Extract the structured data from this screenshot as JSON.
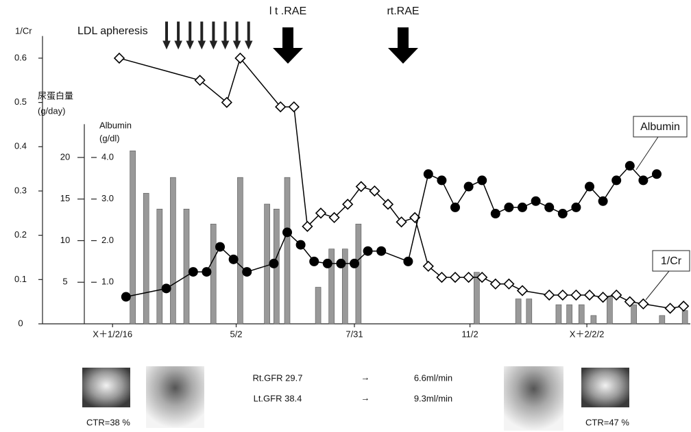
{
  "chart_data": {
    "type": "combo",
    "xlim": [
      0,
      45
    ],
    "xticks": [
      {
        "value": 2,
        "label": "X＋1/2/16"
      },
      {
        "value": 11.2,
        "label": "5/2"
      },
      {
        "value": 20,
        "label": "7/31"
      },
      {
        "value": 28.6,
        "label": "11/2"
      },
      {
        "value": 37.3,
        "label": "X＋2/2/2"
      }
    ],
    "ylabel": "1/Cr",
    "ylim": [
      0,
      0.65
    ],
    "yticks": [
      0,
      0.1,
      0.2,
      0.3,
      0.4,
      0.5,
      0.6
    ],
    "y2label": [
      "尿蛋白量",
      "(g/day)"
    ],
    "y2lim": [
      0,
      24
    ],
    "y2ticks": [
      5,
      10,
      15,
      20
    ],
    "y3label": [
      "Albumin",
      "(g/dl)"
    ],
    "y3lim": [
      0,
      4.8
    ],
    "y3ticks": [
      {
        "value": 1,
        "label": "1.0"
      },
      {
        "value": 2,
        "label": "2.0"
      },
      {
        "value": 3,
        "label": "3.0"
      },
      {
        "value": 4,
        "label": "4.0"
      }
    ],
    "series": [
      {
        "name": "1/Cr",
        "type": "line",
        "marker": "diamond",
        "axis": "y",
        "color": "#000000",
        "x": [
          2.5,
          8.5,
          10.5,
          11.5,
          14.5,
          15.5,
          16.5,
          17.5,
          18.5,
          19.5,
          20.5,
          21.5,
          22.5,
          23.5,
          24.5,
          25.5,
          26.5,
          27.5,
          28.5,
          29.5,
          30.5,
          31.5,
          32.5,
          34.5,
          35.5,
          36.5,
          37.5,
          38.5,
          39.5,
          40.5,
          41.5,
          43.5,
          44.5
        ],
        "values": [
          0.6,
          0.55,
          0.5,
          0.6,
          0.49,
          0.49,
          0.22,
          0.25,
          0.24,
          0.27,
          0.31,
          0.3,
          0.27,
          0.23,
          0.24,
          0.13,
          0.105,
          0.105,
          0.105,
          0.105,
          0.09,
          0.09,
          0.075,
          0.065,
          0.065,
          0.065,
          0.065,
          0.06,
          0.065,
          0.05,
          0.045,
          0.035,
          0.04
        ]
      },
      {
        "name": "Albumin",
        "type": "line",
        "marker": "circle",
        "axis": "y3",
        "color": "#000000",
        "x": [
          3,
          6,
          8,
          9,
          10,
          11,
          12,
          14,
          15,
          16,
          17,
          18,
          19,
          20,
          21,
          22,
          24,
          25.5,
          26.5,
          27.5,
          28.5,
          29.5,
          30.5,
          31.5,
          32.5,
          33.5,
          34.5,
          35.5,
          36.5,
          37.5,
          38.5,
          39.5,
          40.5,
          41.5,
          42.5
        ],
        "values": [
          0.65,
          0.85,
          1.25,
          1.25,
          1.85,
          1.55,
          1.25,
          1.45,
          2.2,
          1.9,
          1.5,
          1.45,
          1.45,
          1.45,
          1.75,
          1.75,
          1.5,
          3.6,
          3.45,
          2.8,
          3.3,
          3.45,
          2.65,
          2.8,
          2.8,
          2.95,
          2.8,
          2.65,
          2.8,
          3.3,
          2.95,
          3.45,
          3.8,
          3.45,
          3.6
        ]
      },
      {
        "type": "bar",
        "axis": "y2",
        "color": "#999999",
        "x": [
          3.5,
          4.5,
          5.5,
          6.5,
          7.5,
          9.5,
          11.5,
          13.5,
          14.2,
          15,
          17.3,
          18.3,
          19.3,
          20.3,
          29.1,
          32.2,
          33,
          35.2,
          36,
          36.9,
          37.8,
          39,
          40.8,
          42.9,
          44.6
        ],
        "values": [
          20.8,
          15.7,
          13.8,
          17.6,
          13.8,
          12,
          17.6,
          14.4,
          13.8,
          17.6,
          4.4,
          9,
          9,
          12,
          6.2,
          3,
          3,
          2.3,
          2.3,
          2.3,
          1,
          3.3,
          2.3,
          1,
          1.6
        ]
      }
    ],
    "annotations": [
      "LDL  apheresis",
      "l t .RAE",
      "rt.RAE"
    ]
  },
  "images": [
    {
      "caption": "CTR=38 %"
    },
    {
      "caption": "CTR=47 %"
    }
  ],
  "gfr": [
    {
      "label": "Rt.GFR 29.7",
      "arrow": "→",
      "result": "6.6ml/min"
    },
    {
      "label": "Lt.GFR 38.4",
      "arrow": "→",
      "result": "9.3ml/min"
    }
  ]
}
